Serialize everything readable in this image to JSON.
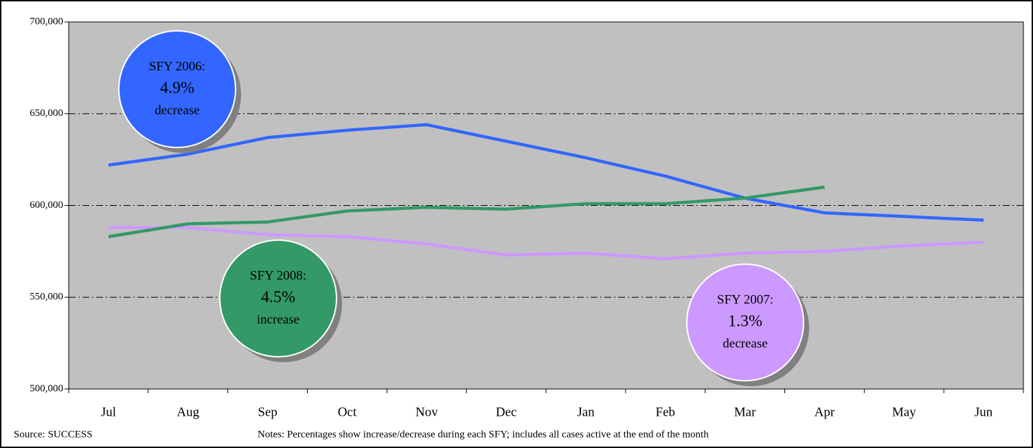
{
  "chart_data": {
    "type": "line",
    "categories": [
      "Jul",
      "Aug",
      "Sep",
      "Oct",
      "Nov",
      "Dec",
      "Jan",
      "Feb",
      "Mar",
      "Apr",
      "May",
      "Jun"
    ],
    "series": [
      {
        "color": "#3366ff",
        "values": [
          622000,
          628000,
          637000,
          641000,
          644000,
          635000,
          626000,
          616000,
          604000,
          596000,
          594000,
          592000
        ]
      },
      {
        "color": "#cc99ff",
        "values": [
          588000,
          588000,
          584000,
          583000,
          579000,
          573000,
          574000,
          571000,
          574000,
          575000,
          578000,
          580000
        ]
      },
      {
        "color": "#339966",
        "values": [
          583000,
          590000,
          591000,
          597000,
          599000,
          598000,
          601000,
          601000,
          604000,
          610000,
          null,
          null
        ]
      }
    ],
    "ylim": [
      500000,
      700000
    ],
    "yticks": [
      {
        "value": 500000,
        "label": "500,000"
      },
      {
        "value": 550000,
        "label": "550,000"
      },
      {
        "value": 600000,
        "label": "600,000"
      },
      {
        "value": 650000,
        "label": "650,000"
      },
      {
        "value": 700000,
        "label": "700,000"
      }
    ],
    "grid": true,
    "plot_background": "#c0c0c0",
    "annotations": [
      {
        "lines": [
          "SFY 2006:",
          "4.9%",
          "decrease"
        ],
        "color": "#3366ff"
      },
      {
        "lines": [
          "SFY 2008:",
          "4.5%",
          "increase"
        ],
        "color": "#339966"
      },
      {
        "lines": [
          "SFY 2007:",
          "1.3%",
          "decrease"
        ],
        "color": "#cc99ff"
      }
    ],
    "source": "Source: SUCCESS",
    "notes": "Notes: Percentages show increase/decrease during each SFY;  includes all cases active at the end of the month"
  }
}
